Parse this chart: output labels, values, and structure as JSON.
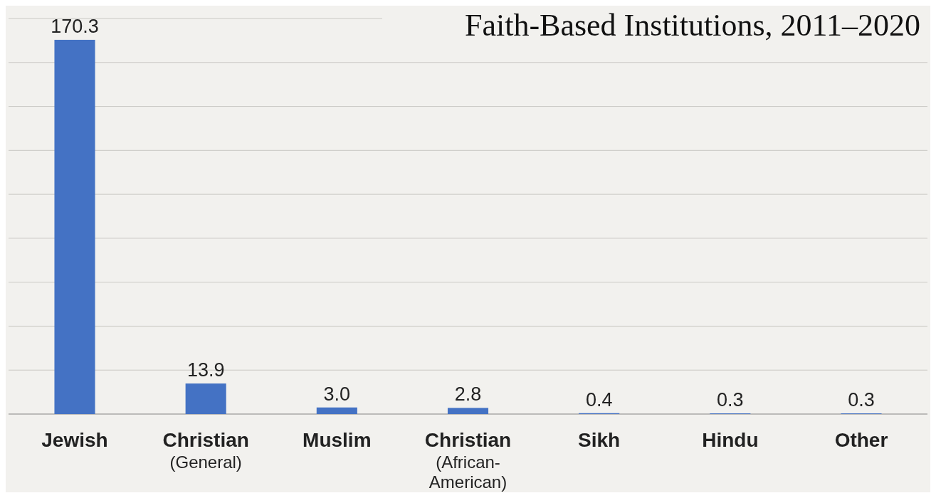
{
  "chart_data": {
    "type": "bar",
    "title": "Faith-Based Institutions, 2011–2020",
    "categories": [
      "Jewish",
      "Christian\n(General)",
      "Muslim",
      "Christian\n(African-American)",
      "Sikh",
      "Hindu",
      "Other"
    ],
    "values": [
      170.3,
      13.9,
      3.0,
      2.8,
      0.4,
      0.3,
      0.3
    ],
    "value_labels": [
      "170.3",
      "13.9",
      "3.0",
      "2.8",
      "0.4",
      "0.3",
      "0.3"
    ],
    "color": "#4472c4",
    "ylim": [
      0,
      180
    ],
    "yticks": [
      {
        "value": 0,
        "label": null
      },
      {
        "value": 20,
        "label": null
      },
      {
        "value": 40,
        "label": null
      },
      {
        "value": 60,
        "label": null
      },
      {
        "value": 80,
        "label": null
      },
      {
        "value": 100,
        "label": null
      },
      {
        "value": 120,
        "label": null
      },
      {
        "value": 140,
        "label": null
      },
      {
        "value": 160,
        "label": null
      },
      {
        "value": 180,
        "label": null
      }
    ],
    "grid": "y",
    "tick_labels": "x"
  }
}
